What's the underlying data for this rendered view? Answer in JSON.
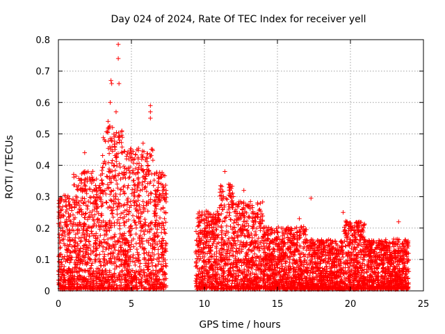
{
  "chart_data": {
    "type": "scatter",
    "title": "Day 024 of 2024, Rate Of TEC Index for receiver yell",
    "xlabel": "GPS time / hours",
    "ylabel": "ROTI / TECUs",
    "xlim": [
      0,
      25
    ],
    "ylim": [
      0,
      0.8
    ],
    "xticks": [
      0,
      5,
      10,
      15,
      20,
      25
    ],
    "xtick_labels": [
      "0",
      "5",
      "10",
      "15",
      "20",
      "25"
    ],
    "yticks": [
      0,
      0.1,
      0.2,
      0.3,
      0.4,
      0.5,
      0.6,
      0.7,
      0.8
    ],
    "ytick_labels": [
      "0",
      "0.1",
      "0.2",
      "0.3",
      "0.4",
      "0.5",
      "0.6",
      "0.7",
      "0.8"
    ],
    "grid": true,
    "marker": "+",
    "marker_color": "#ff0000",
    "series": [
      {
        "name": "ROTI",
        "envelope": [
          {
            "x_start": 0.0,
            "x_end": 1.0,
            "typical_max": 0.3
          },
          {
            "x_start": 1.0,
            "x_end": 3.0,
            "typical_max": 0.38
          },
          {
            "x_start": 3.0,
            "x_end": 4.5,
            "typical_max": 0.52
          },
          {
            "x_start": 4.5,
            "x_end": 6.5,
            "typical_max": 0.45
          },
          {
            "x_start": 6.5,
            "x_end": 7.4,
            "typical_max": 0.38
          },
          {
            "x_start": 9.4,
            "x_end": 11.0,
            "typical_max": 0.25
          },
          {
            "x_start": 11.0,
            "x_end": 12.0,
            "typical_max": 0.34
          },
          {
            "x_start": 12.0,
            "x_end": 14.0,
            "typical_max": 0.28
          },
          {
            "x_start": 14.0,
            "x_end": 17.0,
            "typical_max": 0.2
          },
          {
            "x_start": 17.0,
            "x_end": 19.5,
            "typical_max": 0.16
          },
          {
            "x_start": 19.5,
            "x_end": 21.0,
            "typical_max": 0.22
          },
          {
            "x_start": 21.0,
            "x_end": 24.0,
            "typical_max": 0.16
          }
        ],
        "notable_points": [
          {
            "x": 4.1,
            "y": 0.785
          },
          {
            "x": 4.1,
            "y": 0.74
          },
          {
            "x": 4.15,
            "y": 0.66
          },
          {
            "x": 3.6,
            "y": 0.67
          },
          {
            "x": 3.65,
            "y": 0.66
          },
          {
            "x": 3.55,
            "y": 0.6
          },
          {
            "x": 3.95,
            "y": 0.57
          },
          {
            "x": 3.4,
            "y": 0.54
          },
          {
            "x": 6.3,
            "y": 0.59
          },
          {
            "x": 6.3,
            "y": 0.57
          },
          {
            "x": 6.3,
            "y": 0.55
          },
          {
            "x": 5.8,
            "y": 0.47
          },
          {
            "x": 1.8,
            "y": 0.44
          },
          {
            "x": 11.4,
            "y": 0.38
          },
          {
            "x": 12.7,
            "y": 0.32
          },
          {
            "x": 17.3,
            "y": 0.295
          },
          {
            "x": 16.5,
            "y": 0.23
          },
          {
            "x": 19.5,
            "y": 0.25
          },
          {
            "x": 23.3,
            "y": 0.22
          },
          {
            "x": 23.9,
            "y": 0.1
          }
        ]
      }
    ]
  }
}
